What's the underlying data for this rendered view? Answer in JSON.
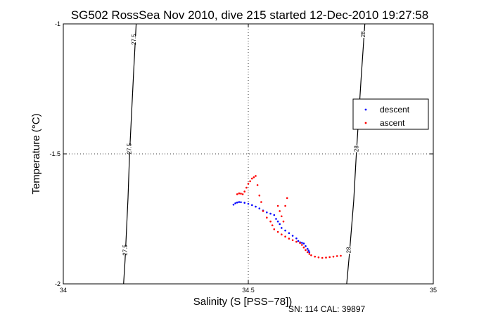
{
  "chart_data": {
    "type": "scatter",
    "title": "SG502 RossSea Nov 2010, dive 215 started 12-Dec-2010 19:27:58",
    "xlabel": "Salinity (S [PSS−78])",
    "ylabel": "Temperature (°C)",
    "xlim": [
      34,
      35
    ],
    "ylim": [
      -2,
      -1
    ],
    "x_ticks": [
      "34",
      "34.5",
      "35"
    ],
    "y_ticks": [
      "-1",
      "-1.5",
      "-2"
    ],
    "grid": "dotted",
    "legend_placement": "right",
    "footer": "SN: 114  CAL: 39897",
    "contours": [
      {
        "label": "27.5",
        "points": [
          [
            34.163,
            -2.0
          ],
          [
            34.167,
            -1.91
          ],
          [
            34.175,
            -1.67
          ],
          [
            34.179,
            -1.5
          ],
          [
            34.19,
            -1.19
          ],
          [
            34.197,
            -1.0
          ]
        ],
        "label_positions": [
          [
            34.19,
            -1.06
          ],
          [
            34.178,
            -1.48
          ],
          [
            34.166,
            -1.87
          ]
        ]
      },
      {
        "label": "28",
        "points": [
          [
            34.766,
            -2.0
          ],
          [
            34.773,
            -1.89
          ],
          [
            34.785,
            -1.68
          ],
          [
            34.792,
            -1.5
          ],
          [
            34.805,
            -1.21
          ],
          [
            34.815,
            -1.0
          ]
        ],
        "label_positions": [
          [
            34.81,
            -1.04
          ],
          [
            34.792,
            -1.48
          ],
          [
            34.771,
            -1.87
          ]
        ]
      }
    ],
    "series": [
      {
        "name": "descent",
        "color": "#0000ff",
        "x": [
          34.46,
          34.465,
          34.47,
          34.475,
          34.48,
          34.49,
          34.5,
          34.51,
          34.52,
          34.53,
          34.54,
          34.55,
          34.56,
          34.57,
          34.575,
          34.58,
          34.585,
          34.59,
          34.6,
          34.61,
          34.62,
          34.63,
          34.635,
          34.64,
          34.645,
          34.65,
          34.655,
          34.66,
          34.663,
          34.665
        ],
        "y": [
          -1.695,
          -1.69,
          -1.687,
          -1.685,
          -1.686,
          -1.688,
          -1.692,
          -1.697,
          -1.703,
          -1.71,
          -1.718,
          -1.725,
          -1.73,
          -1.735,
          -1.75,
          -1.76,
          -1.77,
          -1.785,
          -1.795,
          -1.805,
          -1.815,
          -1.825,
          -1.835,
          -1.84,
          -1.842,
          -1.845,
          -1.855,
          -1.865,
          -1.872,
          -1.878
        ]
      },
      {
        "name": "ascent",
        "color": "#ff0000",
        "x": [
          34.47,
          34.475,
          34.48,
          34.485,
          34.49,
          34.495,
          34.5,
          34.505,
          34.51,
          34.515,
          34.52,
          34.525,
          34.53,
          34.535,
          34.54,
          34.55,
          34.56,
          34.565,
          34.57,
          34.58,
          34.59,
          34.6,
          34.61,
          34.62,
          34.63,
          34.64,
          34.645,
          34.65,
          34.655,
          34.66,
          34.665,
          34.67,
          34.68,
          34.69,
          34.7,
          34.71,
          34.72,
          34.73,
          34.74,
          34.75,
          34.58,
          34.585,
          34.59,
          34.595,
          34.6,
          34.605
        ],
        "y": [
          -1.655,
          -1.652,
          -1.653,
          -1.655,
          -1.645,
          -1.63,
          -1.615,
          -1.605,
          -1.595,
          -1.59,
          -1.585,
          -1.62,
          -1.66,
          -1.685,
          -1.72,
          -1.745,
          -1.76,
          -1.775,
          -1.79,
          -1.8,
          -1.81,
          -1.818,
          -1.826,
          -1.832,
          -1.838,
          -1.843,
          -1.85,
          -1.86,
          -1.87,
          -1.878,
          -1.885,
          -1.89,
          -1.895,
          -1.898,
          -1.9,
          -1.899,
          -1.897,
          -1.895,
          -1.893,
          -1.892,
          -1.7,
          -1.72,
          -1.74,
          -1.76,
          -1.7,
          -1.67
        ]
      }
    ]
  }
}
